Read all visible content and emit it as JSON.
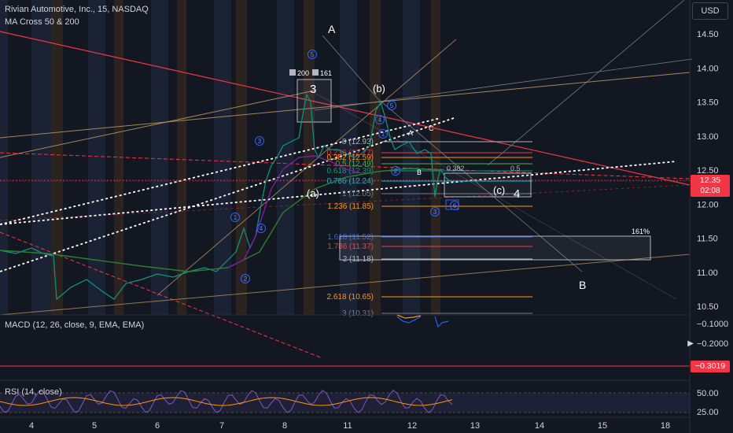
{
  "header": {
    "title": "Rivian Automotive, Inc., 15, NASDAQ",
    "indicator": "MA Cross 50 & 200"
  },
  "toolbar": {
    "currency_button": "USD"
  },
  "price_axis": {
    "ticks": [
      "14.50",
      "14.00",
      "13.50",
      "13.00",
      "12.50",
      "12.00",
      "11.50",
      "11.00",
      "10.50"
    ],
    "current_price": "12.35",
    "countdown": "02:08"
  },
  "time_axis": {
    "ticks": [
      "4",
      "5",
      "6",
      "7",
      "8",
      "11",
      "12",
      "13",
      "14",
      "15",
      "18"
    ]
  },
  "annotations": {
    "wave_labels": [
      "A",
      "3",
      "(b)",
      "(a)",
      "(c)",
      "4",
      "B",
      "161%",
      "A",
      "B",
      "C"
    ],
    "counts": [
      "1",
      "2",
      "3",
      "4",
      "5",
      "1",
      "2",
      "3",
      "4",
      "5",
      "6"
    ],
    "volume_tags": [
      "200",
      "161"
    ],
    "fib_levels": [
      {
        "label": "0 (12.93)",
        "color": "#b2b5be"
      },
      {
        "label": "0.236 (12.77)",
        "color": "#f23645"
      },
      {
        "label": "0.382 (12.59)",
        "color": "#ff9800"
      },
      {
        "label": "0.5 (12.49)",
        "color": "#4caf50"
      },
      {
        "label": "0.618 (12.39)",
        "color": "#089981"
      },
      {
        "label": "0.786 (12.24)",
        "color": "#00bcd4"
      },
      {
        "label": "1 (12.05)",
        "color": "#787b86"
      },
      {
        "label": "1.236 (11.85)",
        "color": "#ff9800"
      },
      {
        "label": "1.618 (11.52)",
        "color": "#2962ff"
      },
      {
        "label": "1.786 (11.37)",
        "color": "#f23645"
      },
      {
        "label": "2 (11.18)",
        "color": "#b2b5be"
      },
      {
        "label": "2.618 (10.65)",
        "color": "#ff9800"
      },
      {
        "label": "3 (10.31)",
        "color": "#787b86"
      }
    ],
    "mini_fib": [
      "0.382",
      "0.5"
    ]
  },
  "macd": {
    "label": "MACD (12, 26, close, 9, EMA, EMA)",
    "ticks": [
      "−0.1000",
      "−0.2000"
    ],
    "value": "−0.3019"
  },
  "rsi": {
    "label": "RSI (14, close)",
    "ticks": [
      "50.00",
      "25.00"
    ]
  },
  "chart_data": {
    "type": "line",
    "title": "Rivian Automotive, Inc., 15, NASDAQ",
    "xlabel": "",
    "ylabel": "",
    "x": [
      "4",
      "5",
      "6",
      "7",
      "8",
      "11",
      "12"
    ],
    "ylim": [
      10.3,
      14.7
    ],
    "series": [
      {
        "name": "",
        "values": [
          11.3,
          10.75,
          11.05,
          11.5,
          13.7,
          13.45,
          12.35
        ]
      }
    ],
    "current_price": 12.35,
    "macd_value": -0.3019,
    "colors": {
      "up": "#089981",
      "down": "#f23645",
      "accent": "#2962ff"
    },
    "grid": false
  }
}
